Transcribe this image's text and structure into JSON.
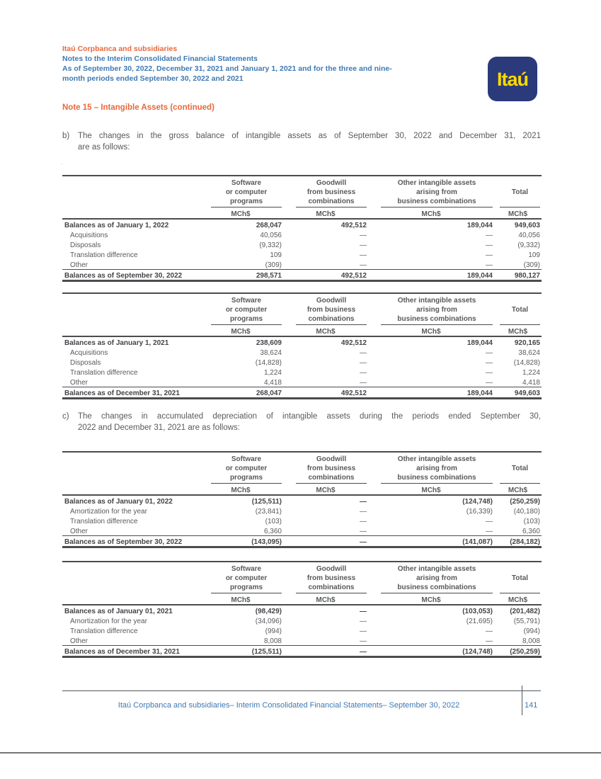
{
  "page": {
    "header": {
      "company": "Itaú Corpbanca and subsidiaries",
      "lines": [
        "Notes to the Interim Consolidated Financial Statements",
        "As of September 30, 2022, December 31, 2021 and January 1, 2021 and for the three and nine-",
        "month periods ended September 30, 2022 and 2021"
      ]
    },
    "logo_text": "Itaú",
    "note_title": "Note 15 – Intangible Assets (continued)",
    "section_b": {
      "label": "b)",
      "lines": [
        "The changes in the gross balance of intangible assets as of September 30, 2022 and December 31, 2021",
        "are as follows:"
      ]
    },
    "section_c": {
      "label": "c)",
      "lines": [
        "The changes in accumulated depreciation of intangible assets during the periods ended September 30,",
        "2022 and December 31, 2021 are as follows:"
      ]
    },
    "stray_mark": ".",
    "footer": {
      "text": "Itaú Corpbanca and subsidiaries– Interim Consolidated Financial Statements– September 30, 2022",
      "page_number": "141"
    }
  },
  "colors": {
    "accent_orange": "#E8683C",
    "heading_blue": "#3D79B5",
    "logo_navy": "#2A3A7A",
    "logo_yellow": "#FFD900",
    "body_gray": "#58595B"
  },
  "shared_columns": {
    "groups": [
      [
        "Software",
        "or computer",
        "programs"
      ],
      [
        "Goodwill",
        "from business",
        "combinations"
      ],
      [
        "Other intangible assets",
        "arising from",
        "business combinations"
      ],
      [
        "Total"
      ]
    ],
    "unit": "MCh$"
  },
  "tables": [
    {
      "name": "gross-balance-table-sep-2022",
      "column_groups": [
        [
          "Software",
          "or computer",
          "programs"
        ],
        [
          "Goodwill",
          "from business",
          "combinations"
        ],
        [
          "Other intangible assets",
          "arising from",
          "business combinations"
        ],
        [
          "Total"
        ]
      ],
      "unit_row": [
        "MCh$",
        "MCh$",
        "MCh$",
        "MCh$"
      ],
      "rows": [
        {
          "label": "Balances as of January 1, 2022",
          "bold": true,
          "values": [
            "268,047",
            "492,512",
            "189,044",
            "949,603"
          ]
        },
        {
          "label": "Acquisitions",
          "bold": false,
          "values": [
            "40,056",
            "—",
            "—",
            "40,056"
          ]
        },
        {
          "label": "Disposals",
          "bold": false,
          "values": [
            "(9,332)",
            "—",
            "—",
            "(9,332)"
          ]
        },
        {
          "label": "Translation difference",
          "bold": false,
          "values": [
            "109",
            "—",
            "—",
            "109"
          ]
        },
        {
          "label": "Other",
          "bold": false,
          "values": [
            "(309)",
            "—",
            "—",
            "(309)"
          ]
        },
        {
          "label": "Balances as of September 30, 2022",
          "bold": true,
          "total": true,
          "values": [
            "298,571",
            "492,512",
            "189,044",
            "980,127"
          ]
        }
      ]
    },
    {
      "name": "gross-balance-table-dec-2021",
      "column_groups": [
        [
          "Software",
          "or computer",
          "programs"
        ],
        [
          "Goodwill",
          "from business",
          "combinations"
        ],
        [
          "Other intangible assets",
          "arising from",
          "business combinations"
        ],
        [
          "Total"
        ]
      ],
      "unit_row": [
        "MCh$",
        "MCh$",
        "MCh$",
        "MCh$"
      ],
      "rows": [
        {
          "label": "Balances as of January 1, 2021",
          "bold": true,
          "values": [
            "238,609",
            "492,512",
            "189,044",
            "920,165"
          ]
        },
        {
          "label": "Acquisitions",
          "bold": false,
          "values": [
            "38,624",
            "—",
            "—",
            "38,624"
          ]
        },
        {
          "label": "Disposals",
          "bold": false,
          "values": [
            "(14,828)",
            "—",
            "—",
            "(14,828)"
          ]
        },
        {
          "label": "Translation difference",
          "bold": false,
          "values": [
            "1,224",
            "—",
            "—",
            "1,224"
          ]
        },
        {
          "label": "Other",
          "bold": false,
          "values": [
            "4,418",
            "—",
            "—",
            "4,418"
          ]
        },
        {
          "label": "Balances as of December 31, 2021",
          "bold": true,
          "total": true,
          "values": [
            "268,047",
            "492,512",
            "189,044",
            "949,603"
          ]
        }
      ]
    },
    {
      "name": "accumulated-depreciation-table-sep-2022",
      "column_groups": [
        [
          "Software",
          "or computer",
          "programs"
        ],
        [
          "Goodwill",
          "from business",
          "combinations"
        ],
        [
          "Other intangible assets",
          "arising from",
          "business combinations"
        ],
        [
          "Total"
        ]
      ],
      "unit_row": [
        "MCh$",
        "MCh$",
        "MCh$",
        "MCh$"
      ],
      "rows": [
        {
          "label": "Balances as of January 01, 2022",
          "bold": true,
          "values": [
            "(125,511)",
            "—",
            "(124,748)",
            "(250,259)"
          ]
        },
        {
          "label": "Amortization for the year",
          "bold": false,
          "values": [
            "(23,841)",
            "—",
            "(16,339)",
            "(40,180)"
          ]
        },
        {
          "label": "Translation difference",
          "bold": false,
          "values": [
            "(103)",
            "—",
            "—",
            "(103)"
          ]
        },
        {
          "label": "Other",
          "bold": false,
          "values": [
            "6,360",
            "—",
            "—",
            "6,360"
          ]
        },
        {
          "label": "Balances as of September 30, 2022",
          "bold": true,
          "total": true,
          "values": [
            "(143,095)",
            "—",
            "(141,087)",
            "(284,182)"
          ]
        }
      ]
    },
    {
      "name": "accumulated-depreciation-table-dec-2021",
      "column_groups": [
        [
          "Software",
          "or computer",
          "programs"
        ],
        [
          "Goodwill",
          "from business",
          "combinations"
        ],
        [
          "Other intangible assets",
          "arising from",
          "business combinations"
        ],
        [
          "Total"
        ]
      ],
      "unit_row": [
        "MCh$",
        "MCh$",
        "MCh$",
        "MCh$"
      ],
      "rows": [
        {
          "label": "Balances as of January 01, 2021",
          "bold": true,
          "values": [
            "(98,429)",
            "—",
            "(103,053)",
            "(201,482)"
          ]
        },
        {
          "label": "Amortization for the year",
          "bold": false,
          "values": [
            "(34,096)",
            "—",
            "(21,695)",
            "(55,791)"
          ]
        },
        {
          "label": "Translation difference",
          "bold": false,
          "values": [
            "(994)",
            "—",
            "—",
            "(994)"
          ]
        },
        {
          "label": "Other",
          "bold": false,
          "values": [
            "8,008",
            "—",
            "—",
            "8,008"
          ]
        },
        {
          "label": "Balances as of December 31, 2021",
          "bold": true,
          "total": true,
          "values": [
            "(125,511)",
            "—",
            "(124,748)",
            "(250,259)"
          ]
        }
      ]
    }
  ]
}
